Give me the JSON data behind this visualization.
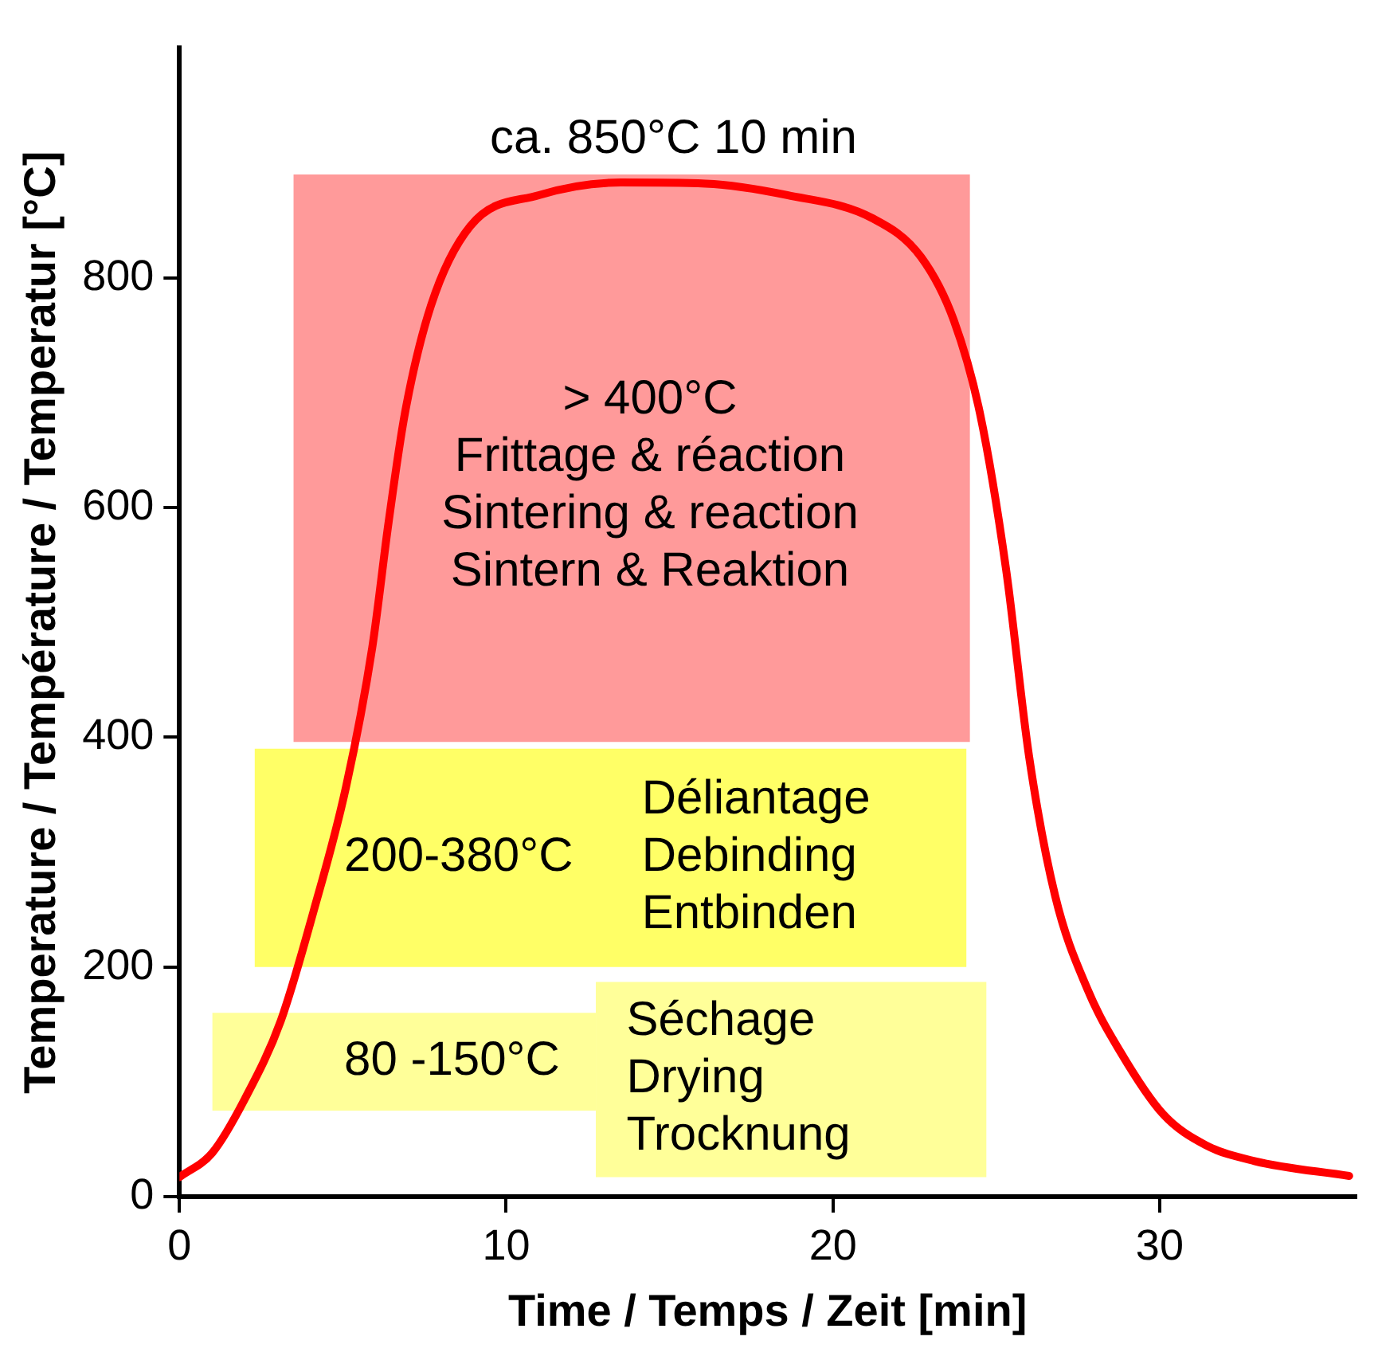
{
  "chart_data": {
    "type": "line",
    "xlabel": "Time / Temps / Zeit [min]",
    "ylabel": "Temperature / Température / Temperatur [°C]",
    "xlim": [
      0,
      36
    ],
    "xticks": [
      0,
      10,
      20,
      30
    ],
    "ylim": [
      0,
      1000
    ],
    "yticks": [
      0,
      200,
      400,
      600,
      800
    ],
    "grid": false,
    "legend": false,
    "marker": "none",
    "line_style": "solid",
    "series": [
      {
        "color": "#ff0000",
        "x": [
          0,
          1,
          2,
          3.1,
          4.1,
          5.1,
          5.9,
          6.4,
          6.9,
          7.7,
          8.9,
          11,
          13.5,
          16.1,
          18.6,
          21.2,
          22.7,
          23.7,
          24.5,
          25.3,
          26,
          26.8,
          27.8,
          28.8,
          30.1,
          31.4,
          32.9,
          35.8
        ],
        "values": [
          17,
          38,
          85,
          153,
          248,
          357,
          478,
          587,
          682,
          776,
          845,
          872,
          883,
          882,
          872,
          852,
          818,
          763,
          682,
          546,
          384,
          262,
          180,
          126,
          72,
          45,
          31,
          18
        ]
      }
    ],
    "bands": [
      {
        "axis": "y",
        "from": 396,
        "to": 890,
        "color": "#ff9a9a",
        "label": "> 400°C\nFrittage & réaction\nSintering & reaction\nSintern & Reaktion"
      },
      {
        "axis": "y",
        "from": 200,
        "to": 390,
        "color": "#ffff66",
        "label": "200-380°C"
      },
      {
        "axis": "y",
        "from": 75,
        "to": 160,
        "color": "#ffff99",
        "label": "80 -150°C"
      },
      {
        "axis": "y",
        "from": 17,
        "to": 187,
        "color": "#ffff99",
        "label": "Séchage\nDrying\nTrocknung"
      }
    ],
    "annotations": [
      "ca. 850°C 10 min",
      "Déliantage\nDebinding\nEntbinden"
    ]
  }
}
